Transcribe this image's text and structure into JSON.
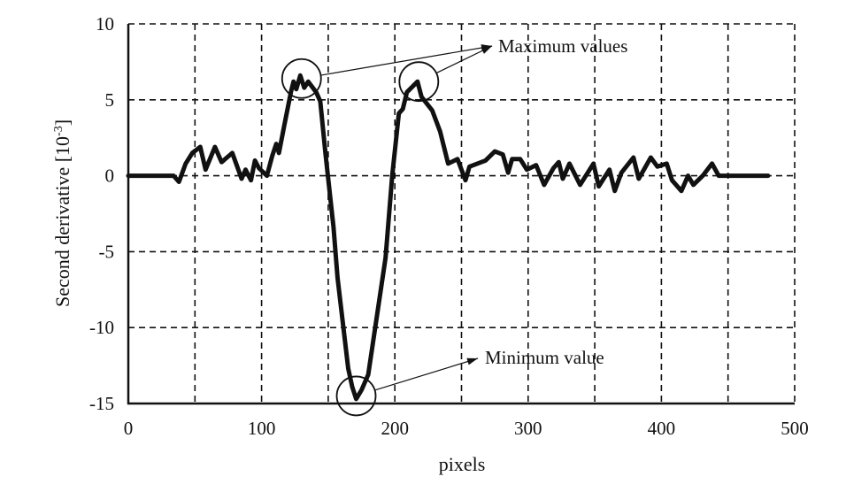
{
  "chart_data": {
    "type": "line",
    "title": "",
    "xlabel": "pixels",
    "ylabel": "Second derivative [10",
    "ylabel_exp": "-3",
    "ylabel_close": "]",
    "xlim": [
      0,
      500
    ],
    "ylim": [
      -15,
      10
    ],
    "xticks": [
      0,
      100,
      200,
      300,
      400,
      500
    ],
    "yticks": [
      10,
      5,
      0,
      -5,
      -10,
      -15
    ],
    "xgrid_step": 50,
    "ygrid_step": 5,
    "grid": true,
    "line_color": "#111111",
    "series": [
      {
        "name": "second derivative",
        "x": [
          0,
          34,
          38,
          43,
          48,
          54,
          58,
          65,
          70,
          78,
          85,
          88,
          92,
          95,
          98,
          104,
          108,
          111,
          113,
          117,
          122,
          124,
          126,
          129,
          132,
          135,
          141,
          144,
          148,
          154,
          157,
          165,
          168,
          171,
          175,
          180,
          193,
          198,
          203,
          206,
          209,
          217,
          220,
          228,
          234,
          240,
          247,
          253,
          256,
          268,
          275,
          281,
          285,
          288,
          294,
          299,
          306,
          312,
          319,
          323,
          326,
          331,
          339,
          349,
          353,
          361,
          365,
          370,
          379,
          383,
          392,
          397,
          404,
          408,
          415,
          420,
          424,
          431,
          438,
          443,
          480
        ],
        "y": [
          0,
          0,
          -0.4,
          0.8,
          1.5,
          1.9,
          0.4,
          1.9,
          0.9,
          1.5,
          -0.2,
          0.4,
          -0.3,
          1.0,
          0.5,
          0.0,
          1.3,
          2.1,
          1.5,
          3.3,
          5.5,
          6.2,
          5.7,
          6.6,
          5.8,
          6.2,
          5.5,
          4.9,
          1.4,
          -3.4,
          -6.7,
          -12.7,
          -13.9,
          -14.7,
          -14.1,
          -13.1,
          -5.4,
          0.0,
          4.1,
          4.4,
          5.5,
          6.2,
          5.2,
          4.3,
          2.9,
          0.8,
          1.1,
          -0.3,
          0.6,
          1.0,
          1.6,
          1.4,
          0.2,
          1.1,
          1.1,
          0.4,
          0.7,
          -0.6,
          0.5,
          0.9,
          -0.2,
          0.8,
          -0.6,
          0.8,
          -0.7,
          0.4,
          -1.0,
          0.2,
          1.2,
          -0.2,
          1.2,
          0.6,
          0.8,
          -0.3,
          -1.0,
          0,
          -0.6,
          0,
          0.8,
          0,
          0
        ]
      }
    ],
    "annotations": [
      {
        "text": "Maximum values",
        "targets": [
          [
            130,
            6.4
          ],
          [
            218,
            6.2
          ]
        ]
      },
      {
        "text": "Minimum value",
        "targets": [
          [
            171,
            -14.5
          ]
        ]
      }
    ]
  }
}
